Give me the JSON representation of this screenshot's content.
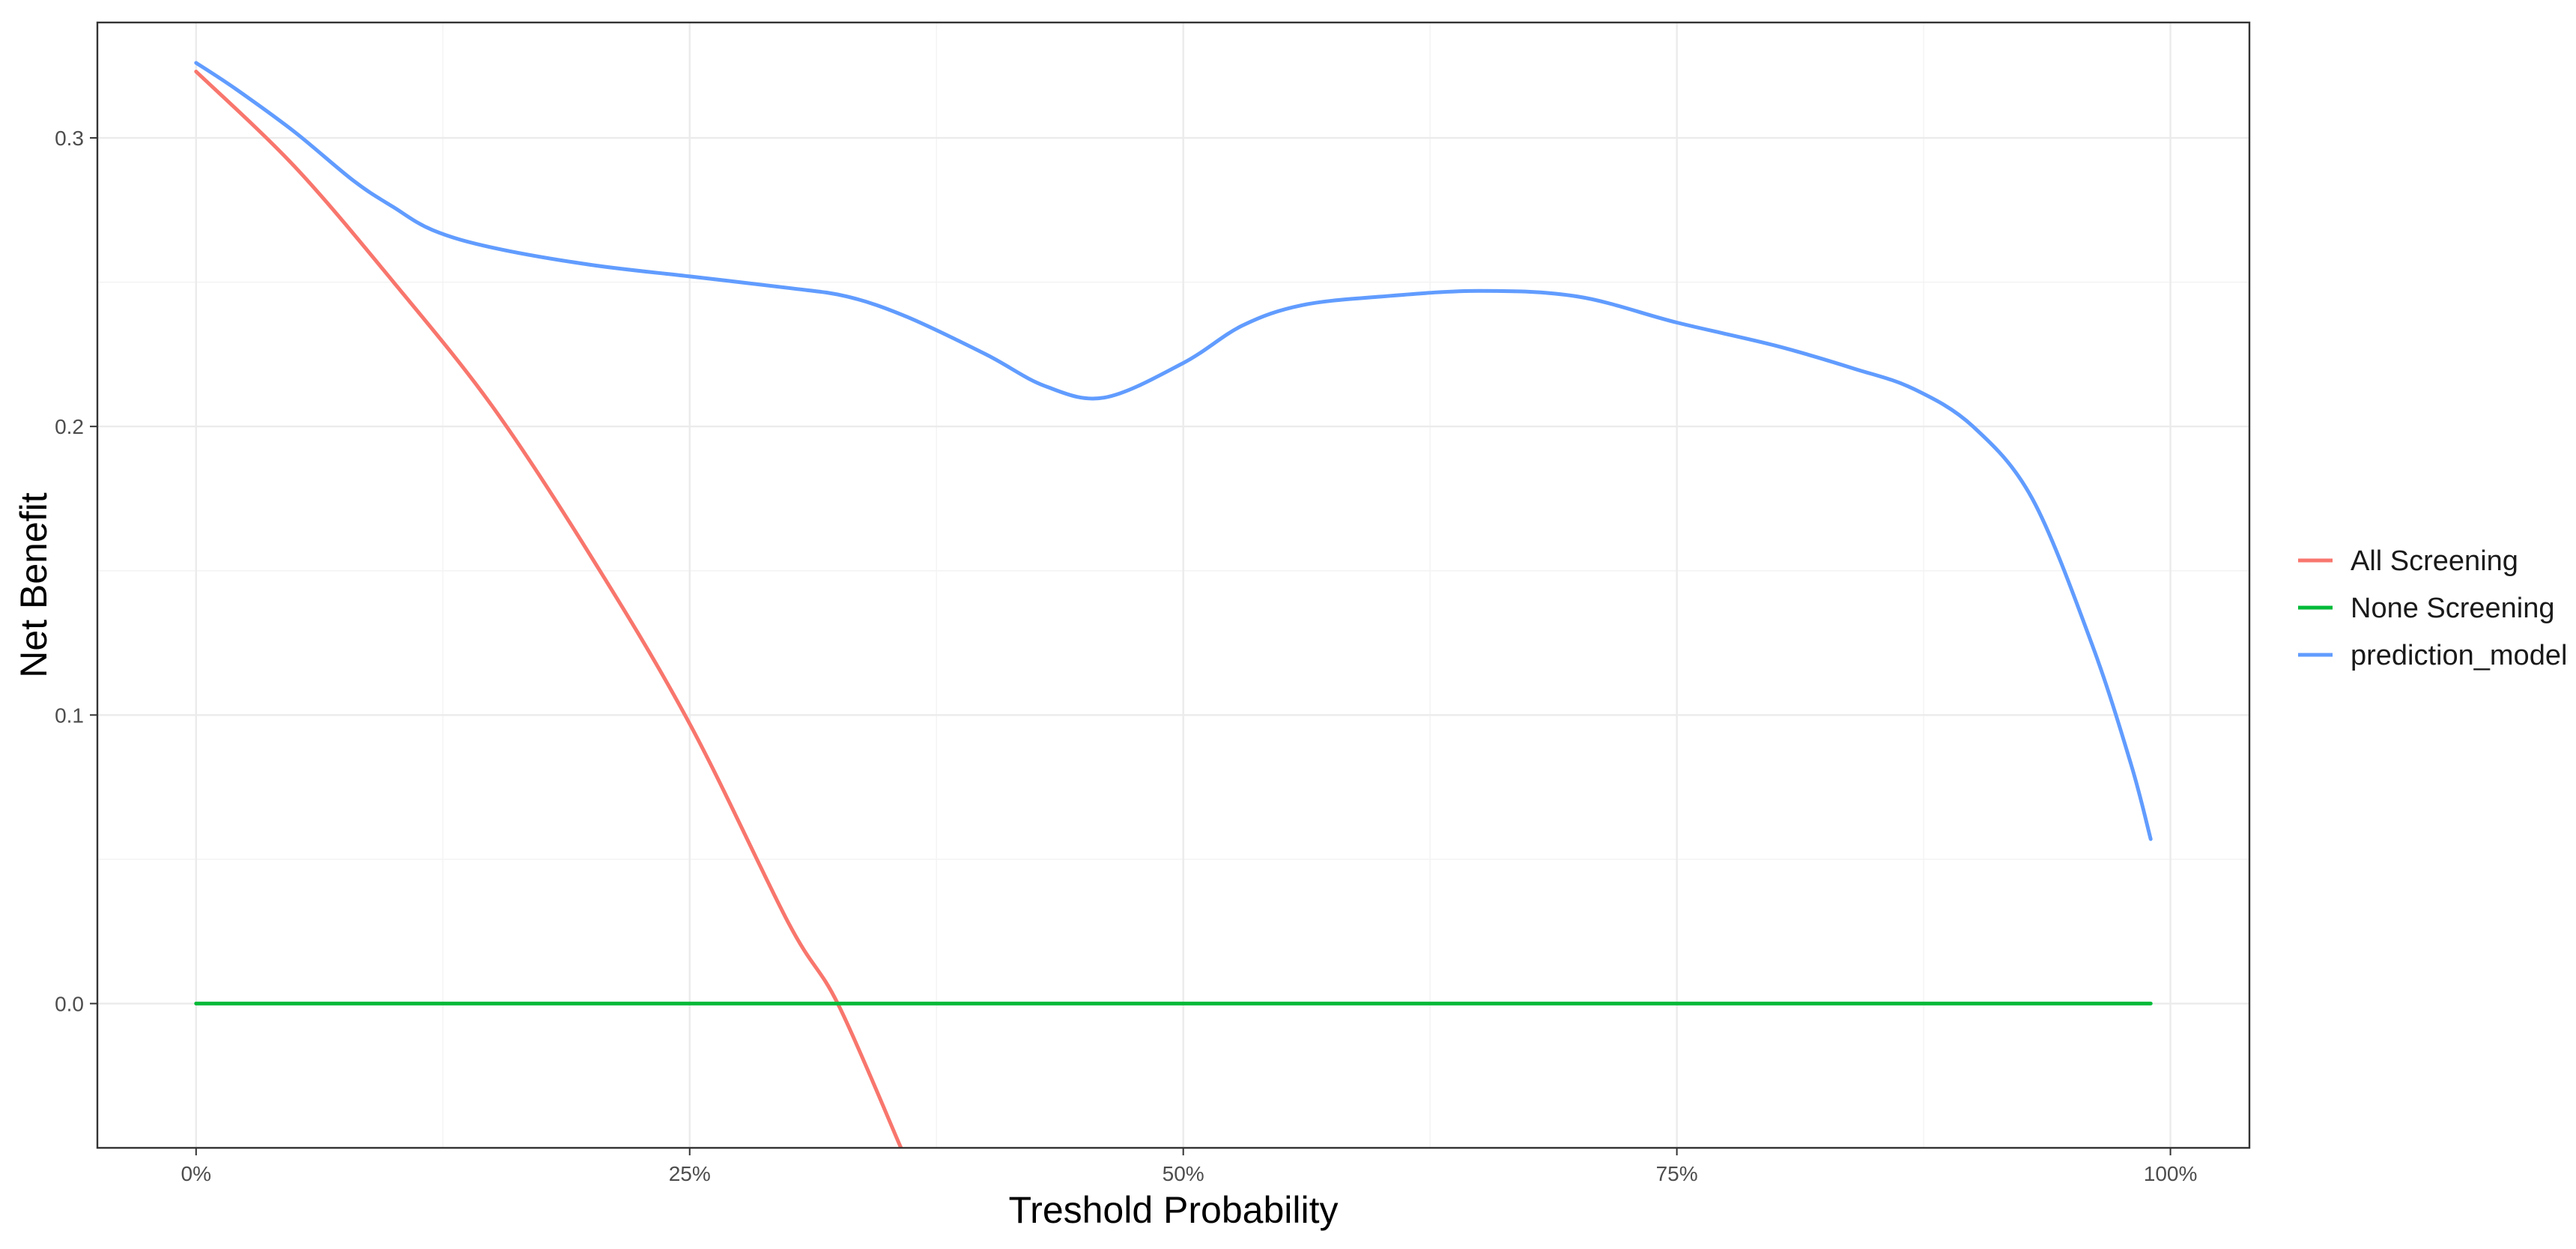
{
  "chart_data": {
    "type": "line",
    "title": "",
    "xlabel": "Treshold Probability",
    "ylabel": "Net Benefit",
    "xlim": [
      -0.05,
      1.04
    ],
    "ylim": [
      -0.05,
      0.34
    ],
    "grid": true,
    "legend_position": "right",
    "x_ticks": [
      {
        "value": 0,
        "label": "0%"
      },
      {
        "value": 0.25,
        "label": "25%"
      },
      {
        "value": 0.5,
        "label": "50%"
      },
      {
        "value": 0.75,
        "label": "75%"
      },
      {
        "value": 1,
        "label": "100%"
      }
    ],
    "x_minor": [
      0.125,
      0.375,
      0.625,
      0.875
    ],
    "y_ticks": [
      {
        "value": 0,
        "label": "0.0"
      },
      {
        "value": 0.1,
        "label": "0.1"
      },
      {
        "value": 0.2,
        "label": "0.2"
      },
      {
        "value": 0.3,
        "label": "0.3"
      }
    ],
    "y_minor": [
      -0.05,
      0.05,
      0.15,
      0.25
    ],
    "series": [
      {
        "name": "All Screening",
        "color": "#F8766D",
        "x": [
          0,
          0.05,
          0.1,
          0.15,
          0.2,
          0.25,
          0.3,
          0.325,
          0.357
        ],
        "y": [
          0.323,
          0.29,
          0.25,
          0.207,
          0.155,
          0.097,
          0.028,
          0.0,
          -0.05
        ]
      },
      {
        "name": "None Screening",
        "color": "#00BA38",
        "x": [
          0,
          0.99
        ],
        "y": [
          0,
          0
        ]
      },
      {
        "name": "prediction_model",
        "color": "#619CFF",
        "x": [
          0,
          0.02,
          0.05,
          0.08,
          0.1,
          0.12,
          0.15,
          0.2,
          0.25,
          0.3,
          0.33,
          0.36,
          0.4,
          0.43,
          0.46,
          0.5,
          0.53,
          0.56,
          0.6,
          0.65,
          0.7,
          0.75,
          0.8,
          0.84,
          0.87,
          0.9,
          0.93,
          0.96,
          0.98,
          0.99
        ],
        "y": [
          0.326,
          0.317,
          0.302,
          0.285,
          0.276,
          0.268,
          0.262,
          0.256,
          0.252,
          0.248,
          0.245,
          0.238,
          0.225,
          0.214,
          0.21,
          0.222,
          0.235,
          0.242,
          0.245,
          0.247,
          0.245,
          0.236,
          0.228,
          0.22,
          0.213,
          0.2,
          0.175,
          0.125,
          0.083,
          0.057
        ]
      }
    ]
  }
}
